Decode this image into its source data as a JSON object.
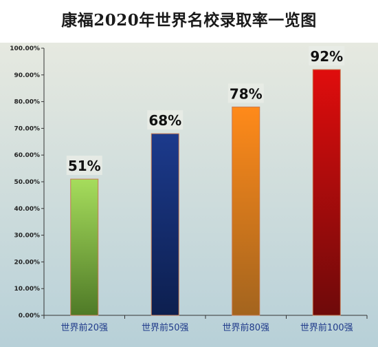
{
  "chart_data": {
    "type": "bar",
    "title": "康福2020年世界名校录取率一览图",
    "categories": [
      "世界前20强",
      "世界前50强",
      "世界前80强",
      "世界前100强"
    ],
    "values": [
      51,
      68,
      78,
      92
    ],
    "data_labels": [
      "51%",
      "68%",
      "78%",
      "92%"
    ],
    "y_ticks": [
      "0.00%",
      "10.00%",
      "20.00%",
      "30.00%",
      "40.00%",
      "50.00%",
      "60.00%",
      "70.00%",
      "80.00%",
      "90.00%",
      "100.00%"
    ],
    "ylim": [
      0,
      100
    ],
    "xlabel": "",
    "ylabel": "",
    "grid": false,
    "bar_colors": [
      [
        "#a6dd5c",
        "#4f7a27"
      ],
      [
        "#1c3a8c",
        "#0d1f4f"
      ],
      [
        "#ff8a1a",
        "#a3641e"
      ],
      [
        "#e00d0d",
        "#6e0a0a"
      ]
    ],
    "background_colors": [
      "#e6e9e0",
      "#b7d0d8"
    ]
  }
}
